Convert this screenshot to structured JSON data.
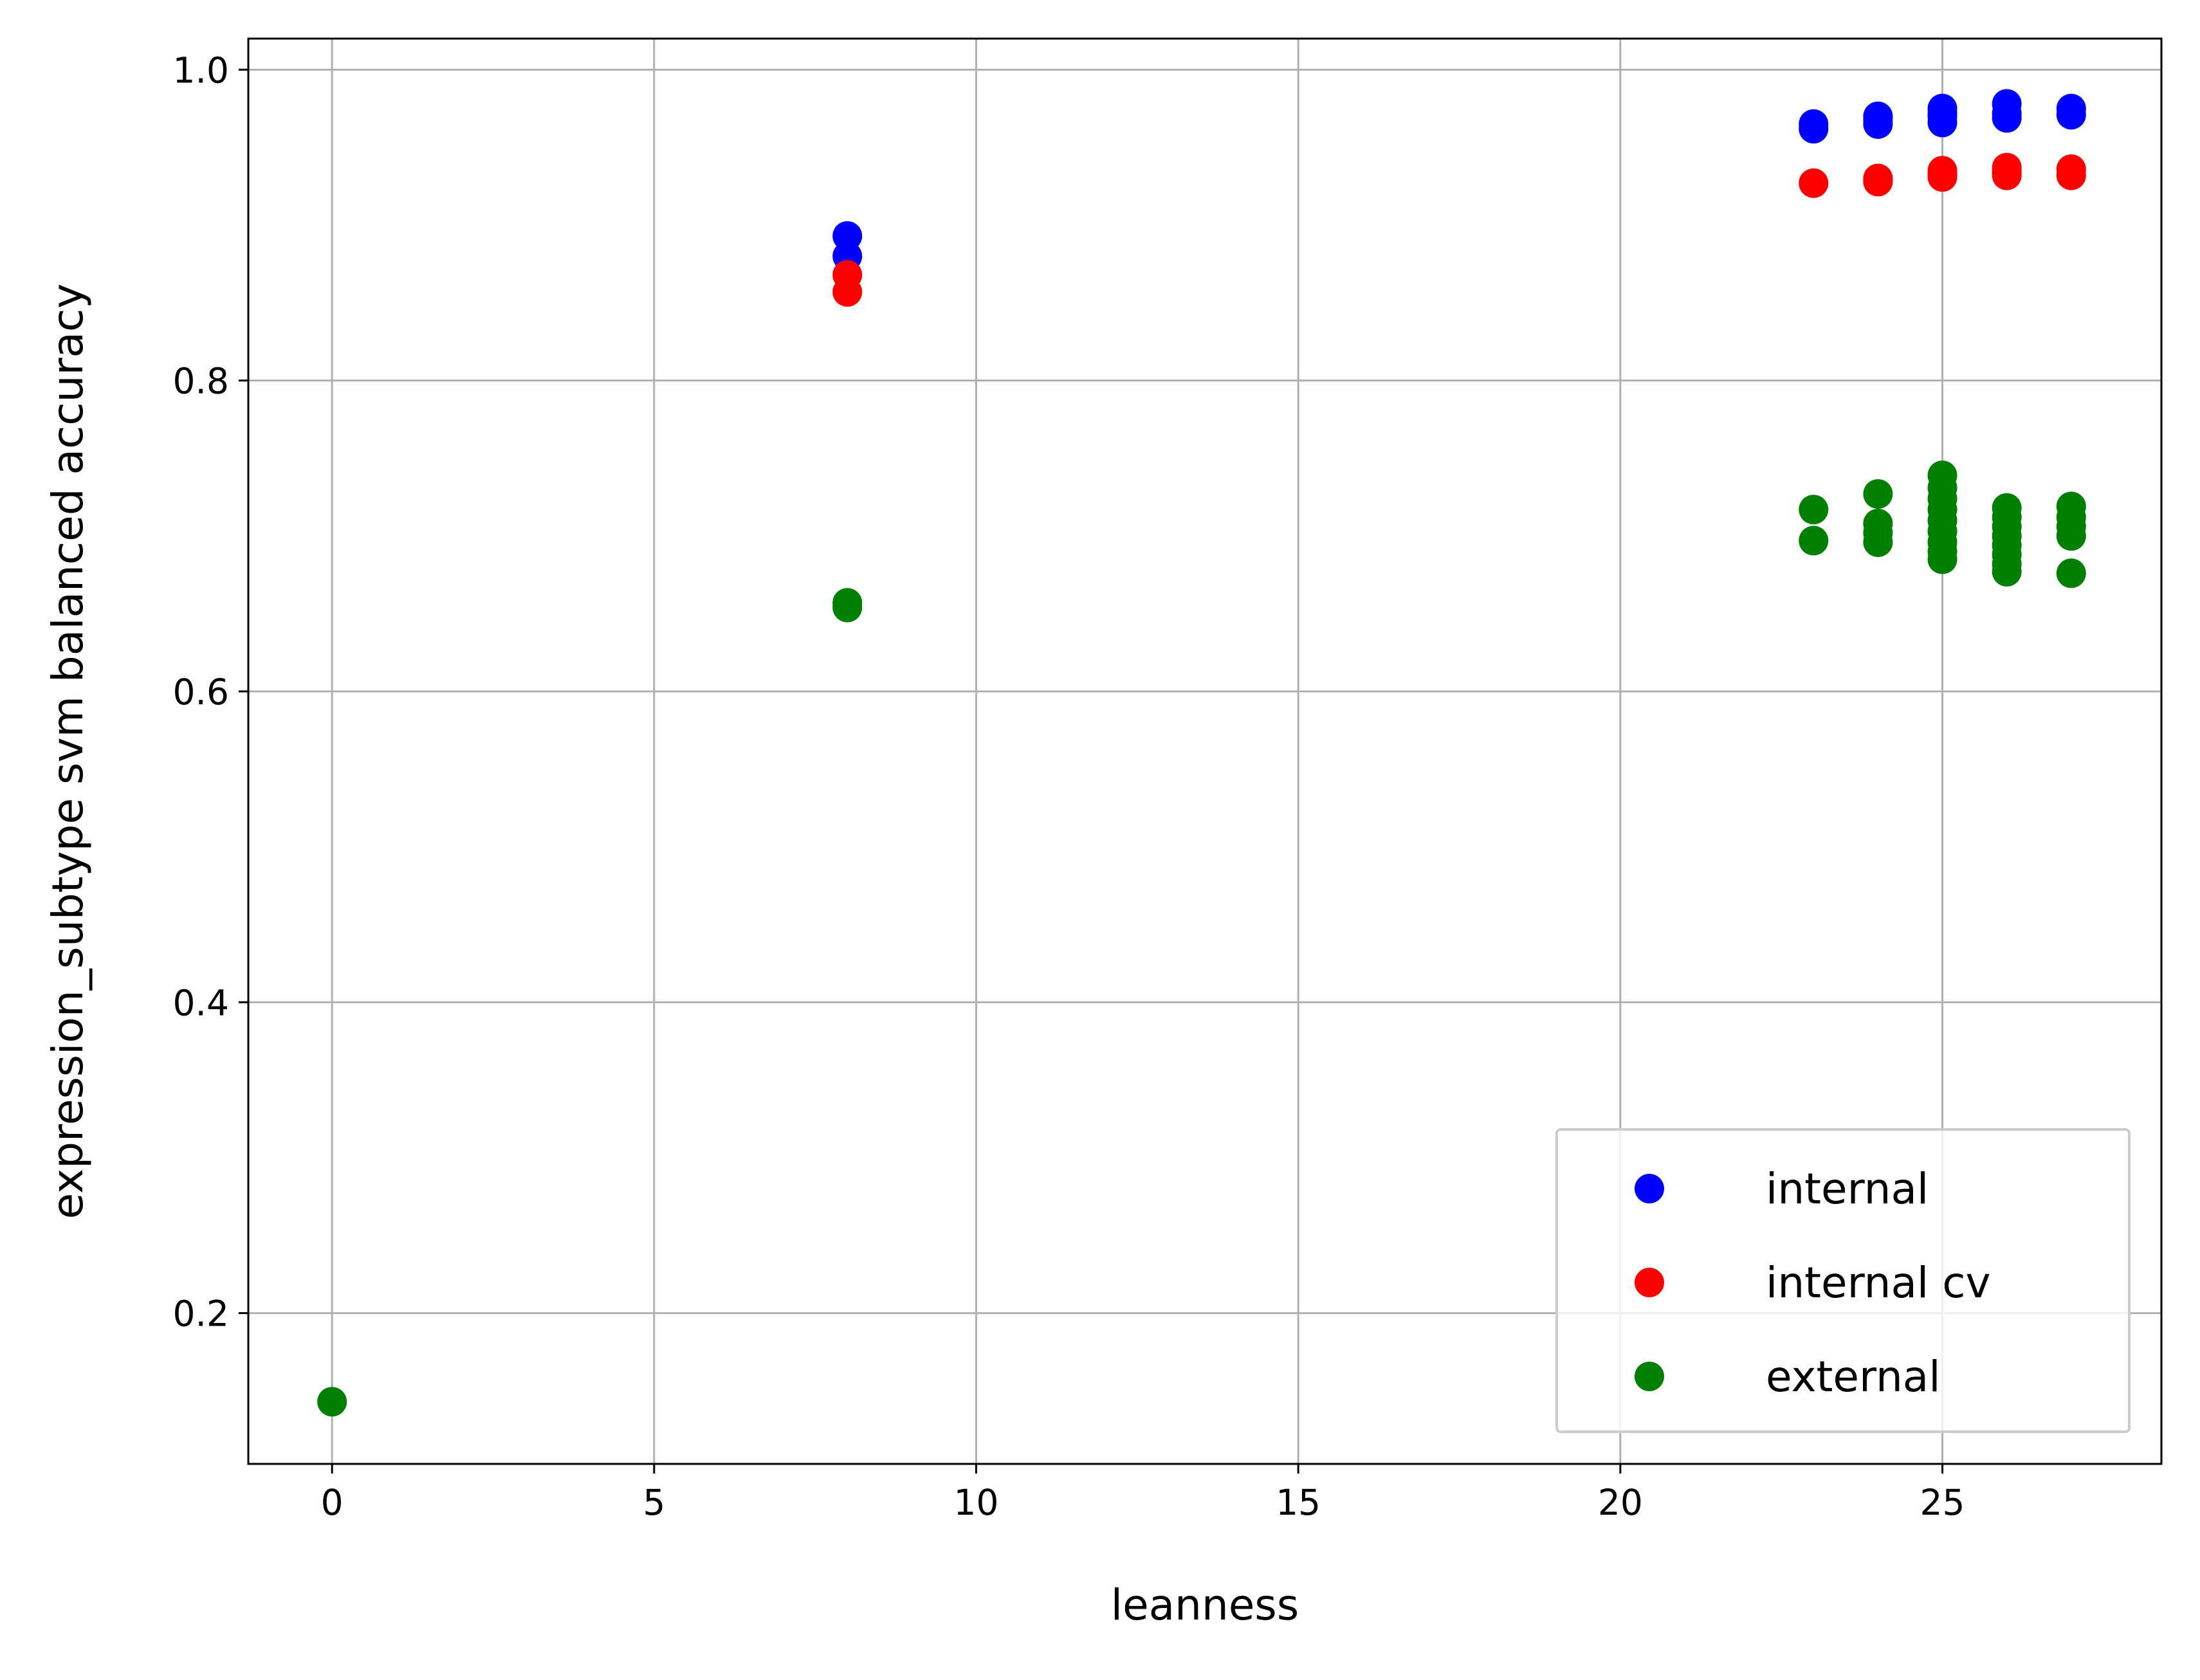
{
  "chart_data": {
    "type": "scatter",
    "title": "",
    "xlabel": "leanness",
    "ylabel": "expression_subtype svm balanced accuracy",
    "xlim": [
      -1.3,
      28.4
    ],
    "ylim": [
      0.103,
      1.02
    ],
    "xticks": [
      0,
      5,
      10,
      15,
      20,
      25
    ],
    "xtick_labels": [
      "0",
      "5",
      "10",
      "15",
      "20",
      "25"
    ],
    "yticks": [
      0.2,
      0.4,
      0.6,
      0.8,
      1.0
    ],
    "ytick_labels": [
      "0.2",
      "0.4",
      "0.6",
      "0.8",
      "1.0"
    ],
    "grid": true,
    "legend_position": "lower right",
    "series": [
      {
        "name": "internal",
        "color": "#0000ff",
        "points": [
          [
            8,
            0.893
          ],
          [
            8,
            0.88
          ],
          [
            23,
            0.965
          ],
          [
            23,
            0.962
          ],
          [
            24,
            0.97
          ],
          [
            24,
            0.965
          ],
          [
            24,
            0.968
          ],
          [
            25,
            0.975
          ],
          [
            25,
            0.97
          ],
          [
            25,
            0.966
          ],
          [
            25,
            0.972
          ],
          [
            26,
            0.978
          ],
          [
            26,
            0.972
          ],
          [
            26,
            0.969
          ],
          [
            27,
            0.975
          ],
          [
            27,
            0.971
          ]
        ]
      },
      {
        "name": "internal cv",
        "color": "#ff0000",
        "points": [
          [
            8,
            0.868
          ],
          [
            8,
            0.857
          ],
          [
            23,
            0.927
          ],
          [
            24,
            0.93
          ],
          [
            24,
            0.928
          ],
          [
            25,
            0.935
          ],
          [
            25,
            0.931
          ],
          [
            25,
            0.933
          ],
          [
            26,
            0.937
          ],
          [
            26,
            0.932
          ],
          [
            26,
            0.934
          ],
          [
            27,
            0.936
          ],
          [
            27,
            0.932
          ]
        ]
      },
      {
        "name": "external",
        "color": "#008000",
        "points": [
          [
            0,
            0.143
          ],
          [
            8,
            0.657
          ],
          [
            8,
            0.654
          ],
          [
            23,
            0.717
          ],
          [
            23,
            0.697
          ],
          [
            24,
            0.727
          ],
          [
            24,
            0.708
          ],
          [
            24,
            0.702
          ],
          [
            24,
            0.696
          ],
          [
            25,
            0.739
          ],
          [
            25,
            0.731
          ],
          [
            25,
            0.724
          ],
          [
            25,
            0.717
          ],
          [
            25,
            0.71
          ],
          [
            25,
            0.703
          ],
          [
            25,
            0.696
          ],
          [
            25,
            0.69
          ],
          [
            25,
            0.685
          ],
          [
            26,
            0.718
          ],
          [
            26,
            0.712
          ],
          [
            26,
            0.706
          ],
          [
            26,
            0.7
          ],
          [
            26,
            0.694
          ],
          [
            26,
            0.688
          ],
          [
            26,
            0.682
          ],
          [
            26,
            0.677
          ],
          [
            27,
            0.719
          ],
          [
            27,
            0.712
          ],
          [
            27,
            0.706
          ],
          [
            27,
            0.7
          ],
          [
            27,
            0.676
          ]
        ]
      }
    ]
  }
}
